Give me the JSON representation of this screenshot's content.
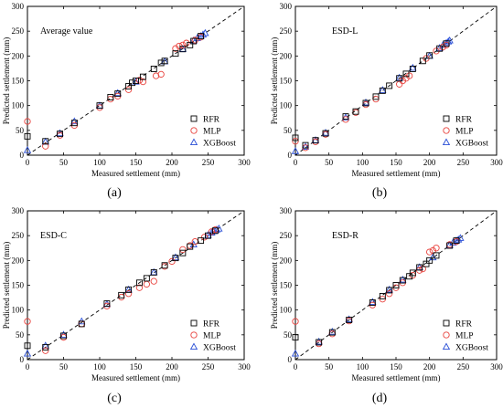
{
  "chart_data": [
    {
      "type": "scatter",
      "panel_label": "(a)",
      "title": "Average value",
      "xlabel": "Measured settlement (mm)",
      "ylabel": "Predicted settlement (mm)",
      "xlim": [
        0,
        300
      ],
      "ylim": [
        0,
        300
      ],
      "ticks": [
        0,
        50,
        100,
        150,
        200,
        250,
        300
      ],
      "reference_line": "y = x (dashed)",
      "legend_position": "bottom-right",
      "series": [
        {
          "name": "RFR",
          "marker": "square",
          "color": "#000000",
          "points": [
            [
              0,
              38
            ],
            [
              25,
              28
            ],
            [
              45,
              43
            ],
            [
              65,
              65
            ],
            [
              100,
              100
            ],
            [
              115,
              117
            ],
            [
              125,
              124
            ],
            [
              140,
              139
            ],
            [
              145,
              146
            ],
            [
              150,
              150
            ],
            [
              160,
              158
            ],
            [
              175,
              174
            ],
            [
              185,
              186
            ],
            [
              190,
              190
            ],
            [
              205,
              205
            ],
            [
              215,
              214
            ],
            [
              225,
              222
            ],
            [
              230,
              230
            ],
            [
              240,
              240
            ]
          ]
        },
        {
          "name": "MLP",
          "marker": "circle",
          "color": "#e8413c",
          "points": [
            [
              0,
              68
            ],
            [
              25,
              18
            ],
            [
              45,
              40
            ],
            [
              65,
              60
            ],
            [
              100,
              96
            ],
            [
              115,
              113
            ],
            [
              125,
              119
            ],
            [
              140,
              132
            ],
            [
              155,
              151
            ],
            [
              160,
              148
            ],
            [
              178,
              160
            ],
            [
              185,
              163
            ],
            [
              205,
              215
            ],
            [
              210,
              220
            ],
            [
              215,
              222
            ],
            [
              220,
              226
            ],
            [
              232,
              232
            ],
            [
              240,
              238
            ]
          ]
        },
        {
          "name": "XGBoost",
          "marker": "triangle",
          "color": "#2a4fd6",
          "points": [
            [
              0,
              10
            ],
            [
              25,
              27
            ],
            [
              45,
              44
            ],
            [
              65,
              68
            ],
            [
              100,
              100
            ],
            [
              125,
              125
            ],
            [
              150,
              148
            ],
            [
              190,
              189
            ],
            [
              215,
              214
            ],
            [
              230,
              231
            ],
            [
              235,
              236
            ],
            [
              240,
              240
            ],
            [
              243,
              243
            ],
            [
              246,
              246
            ]
          ]
        }
      ]
    },
    {
      "type": "scatter",
      "panel_label": "(b)",
      "title": "ESD-L",
      "xlabel": "Measured settlement (mm)",
      "ylabel": "Predicted settlement (mm)",
      "xlim": [
        0,
        300
      ],
      "ylim": [
        0,
        300
      ],
      "ticks": [
        0,
        50,
        100,
        150,
        200,
        250,
        300
      ],
      "reference_line": "y = x (dashed)",
      "legend_position": "bottom-right",
      "series": [
        {
          "name": "RFR",
          "marker": "square",
          "color": "#000000",
          "points": [
            [
              0,
              35
            ],
            [
              15,
              20
            ],
            [
              30,
              30
            ],
            [
              45,
              44
            ],
            [
              75,
              78
            ],
            [
              90,
              88
            ],
            [
              105,
              105
            ],
            [
              120,
              118
            ],
            [
              130,
              130
            ],
            [
              140,
              140
            ],
            [
              155,
              155
            ],
            [
              165,
              164
            ],
            [
              175,
              174
            ],
            [
              190,
              190
            ],
            [
              200,
              201
            ],
            [
              215,
              215
            ],
            [
              225,
              225
            ]
          ]
        },
        {
          "name": "MLP",
          "marker": "circle",
          "color": "#e8413c",
          "points": [
            [
              0,
              28
            ],
            [
              15,
              15
            ],
            [
              30,
              27
            ],
            [
              45,
              42
            ],
            [
              75,
              72
            ],
            [
              90,
              86
            ],
            [
              105,
              102
            ],
            [
              120,
              113
            ],
            [
              155,
              143
            ],
            [
              160,
              150
            ],
            [
              165,
              155
            ],
            [
              170,
              160
            ],
            [
              195,
              195
            ],
            [
              210,
              210
            ],
            [
              220,
              218
            ],
            [
              225,
              222
            ]
          ]
        },
        {
          "name": "XGBoost",
          "marker": "triangle",
          "color": "#2a4fd6",
          "points": [
            [
              0,
              8
            ],
            [
              15,
              17
            ],
            [
              30,
              30
            ],
            [
              45,
              45
            ],
            [
              75,
              76
            ],
            [
              105,
              106
            ],
            [
              130,
              131
            ],
            [
              155,
              156
            ],
            [
              175,
              176
            ],
            [
              200,
              200
            ],
            [
              215,
              216
            ],
            [
              220,
              222
            ],
            [
              225,
              226
            ],
            [
              228,
              229
            ],
            [
              230,
              231
            ]
          ]
        }
      ]
    },
    {
      "type": "scatter",
      "panel_label": "(c)",
      "title": "ESD-C",
      "xlabel": "Measured settlement (mm)",
      "ylabel": "Predicted settlement (mm)",
      "xlim": [
        0,
        300
      ],
      "ylim": [
        0,
        300
      ],
      "ticks": [
        0,
        50,
        100,
        150,
        200,
        250,
        300
      ],
      "reference_line": "y = x (dashed)",
      "legend_position": "bottom-right",
      "series": [
        {
          "name": "RFR",
          "marker": "square",
          "color": "#000000",
          "points": [
            [
              0,
              28
            ],
            [
              25,
              25
            ],
            [
              50,
              48
            ],
            [
              75,
              72
            ],
            [
              110,
              113
            ],
            [
              130,
              130
            ],
            [
              140,
              141
            ],
            [
              155,
              155
            ],
            [
              165,
              164
            ],
            [
              175,
              176
            ],
            [
              190,
              190
            ],
            [
              205,
              205
            ],
            [
              215,
              215
            ],
            [
              225,
              228
            ],
            [
              240,
              240
            ],
            [
              250,
              250
            ],
            [
              260,
              260
            ]
          ]
        },
        {
          "name": "MLP",
          "marker": "circle",
          "color": "#e8413c",
          "points": [
            [
              0,
              77
            ],
            [
              25,
              18
            ],
            [
              50,
              45
            ],
            [
              75,
              72
            ],
            [
              110,
              108
            ],
            [
              130,
              126
            ],
            [
              140,
              133
            ],
            [
              155,
              145
            ],
            [
              165,
              152
            ],
            [
              175,
              158
            ],
            [
              190,
              188
            ],
            [
              200,
              198
            ],
            [
              215,
              222
            ],
            [
              225,
              230
            ],
            [
              232,
              238
            ],
            [
              245,
              247
            ],
            [
              255,
              258
            ],
            [
              260,
              262
            ]
          ]
        },
        {
          "name": "XGBoost",
          "marker": "triangle",
          "color": "#2a4fd6",
          "points": [
            [
              0,
              12
            ],
            [
              25,
              28
            ],
            [
              50,
              50
            ],
            [
              75,
              77
            ],
            [
              110,
              112
            ],
            [
              140,
              141
            ],
            [
              175,
              176
            ],
            [
              205,
              206
            ],
            [
              230,
              232
            ],
            [
              250,
              251
            ],
            [
              255,
              256
            ],
            [
              258,
              259
            ],
            [
              262,
              262
            ],
            [
              265,
              264
            ]
          ]
        }
      ]
    },
    {
      "type": "scatter",
      "panel_label": "(d)",
      "title": "ESD-R",
      "xlabel": "Measured settlement (mm)",
      "ylabel": "Predicted settlement (mm)",
      "xlim": [
        0,
        300
      ],
      "ylim": [
        0,
        300
      ],
      "ticks": [
        0,
        50,
        100,
        150,
        200,
        250,
        300
      ],
      "reference_line": "y = x (dashed)",
      "legend_position": "bottom-right",
      "series": [
        {
          "name": "RFR",
          "marker": "square",
          "color": "#000000",
          "points": [
            [
              0,
              45
            ],
            [
              35,
              35
            ],
            [
              55,
              55
            ],
            [
              80,
              80
            ],
            [
              115,
              115
            ],
            [
              130,
              128
            ],
            [
              140,
              140
            ],
            [
              150,
              150
            ],
            [
              160,
              160
            ],
            [
              170,
              168
            ],
            [
              175,
              175
            ],
            [
              185,
              186
            ],
            [
              195,
              193
            ],
            [
              200,
              200
            ],
            [
              210,
              210
            ],
            [
              230,
              230
            ],
            [
              240,
              240
            ]
          ]
        },
        {
          "name": "MLP",
          "marker": "circle",
          "color": "#e8413c",
          "points": [
            [
              0,
              77
            ],
            [
              35,
              32
            ],
            [
              55,
              52
            ],
            [
              80,
              78
            ],
            [
              115,
              110
            ],
            [
              130,
              122
            ],
            [
              140,
              133
            ],
            [
              150,
              145
            ],
            [
              160,
              155
            ],
            [
              175,
              170
            ],
            [
              185,
              180
            ],
            [
              190,
              183
            ],
            [
              200,
              217
            ],
            [
              205,
              220
            ],
            [
              210,
              225
            ],
            [
              230,
              232
            ],
            [
              240,
              238
            ]
          ]
        },
        {
          "name": "XGBoost",
          "marker": "triangle",
          "color": "#2a4fd6",
          "points": [
            [
              0,
              12
            ],
            [
              35,
              36
            ],
            [
              55,
              56
            ],
            [
              80,
              81
            ],
            [
              115,
              116
            ],
            [
              140,
              141
            ],
            [
              160,
              161
            ],
            [
              185,
              186
            ],
            [
              205,
              206
            ],
            [
              230,
              231
            ],
            [
              235,
              236
            ],
            [
              240,
              240
            ],
            [
              243,
              242
            ],
            [
              246,
              245
            ]
          ]
        }
      ]
    }
  ]
}
